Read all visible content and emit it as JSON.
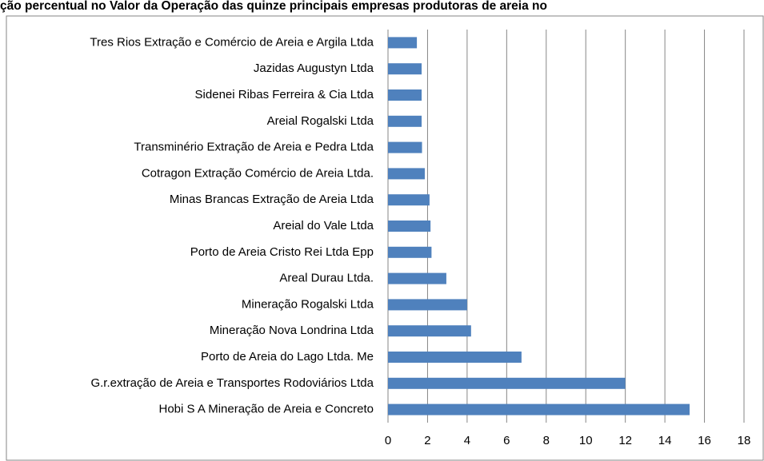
{
  "chart_data": {
    "type": "barh",
    "title": "ção percentual no Valor da Operação das quinze principais empresas produtoras de areia no",
    "categories": [
      "Hobi S A Mineração de Areia e Concreto",
      "G.r.extração de Areia e Transportes Rodoviários Ltda",
      "Porto de Areia do Lago Ltda. Me",
      "Mineração Nova Londrina Ltda",
      "Mineração Rogalski Ltda",
      "Areal Durau Ltda.",
      "Porto de Areia Cristo Rei Ltda Epp",
      "Areial do Vale Ltda",
      "Minas Brancas Extração de Areia Ltda",
      "Cotragon Extração Comércio de Areia Ltda.",
      "Transminério Extração de Areia e Pedra Ltda",
      "Areial Rogalski Ltda",
      "Sidenei Ribas Ferreira & Cia Ltda",
      "Jazidas Augustyn Ltda",
      "Tres Rios Extração e Comércio de Areia e Argila Ltda"
    ],
    "values": [
      15.25,
      12.0,
      6.75,
      4.2,
      4.0,
      2.95,
      2.2,
      2.15,
      2.1,
      1.86,
      1.72,
      1.7,
      1.7,
      1.7,
      1.46
    ],
    "color": "#4f81bd",
    "xlim": [
      0,
      18
    ],
    "xticks": [
      0,
      2,
      4,
      6,
      8,
      10,
      12,
      14,
      16,
      18
    ],
    "grid": true
  }
}
